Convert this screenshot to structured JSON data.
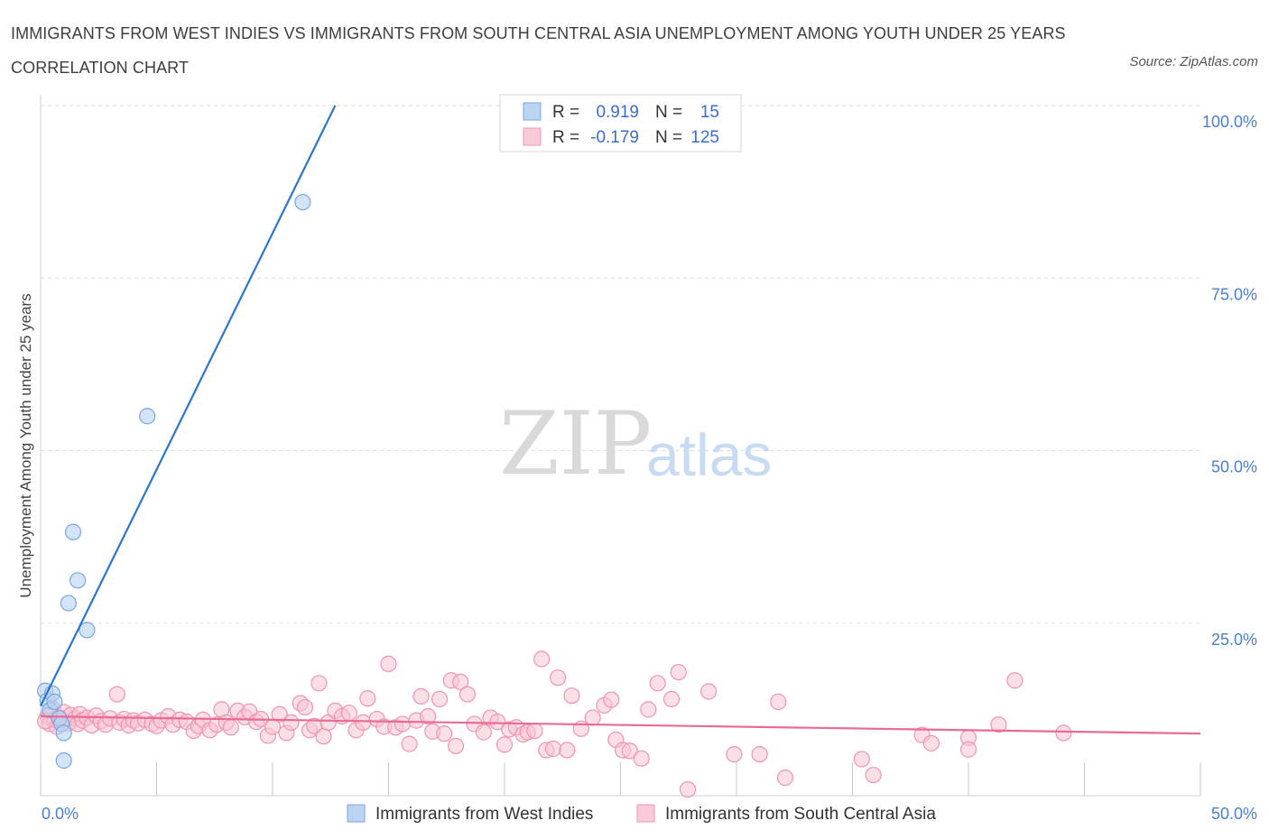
{
  "title": "IMMIGRANTS FROM WEST INDIES VS IMMIGRANTS FROM SOUTH CENTRAL ASIA UNEMPLOYMENT AMONG YOUTH UNDER 25 YEARS CORRELATION CHART",
  "source": "Source: ZipAtlas.com",
  "watermark": {
    "zip": "ZIP",
    "atlas": "atlas"
  },
  "stats": [
    {
      "r_label": "R =",
      "r_value": "0.919",
      "n_label": "N =",
      "n_value": "15",
      "color": "#a9c8f0"
    },
    {
      "r_label": "R =",
      "r_value": "-0.179",
      "n_label": "N =",
      "n_value": "125",
      "color": "#f5b8cb"
    }
  ],
  "colors": {
    "west_indies_fill": "#b8d2f3",
    "west_indies_stroke": "#7aa6dd",
    "west_indies_line": "#2f74cc",
    "sca_fill": "#f7c4d3",
    "sca_stroke": "#ef94b0",
    "sca_line": "#e96a94",
    "grid": "#dcdcdc",
    "axis_text": "#4a7fd0"
  },
  "chart_data": {
    "type": "scatter",
    "title": "IMMIGRANTS FROM WEST INDIES VS IMMIGRANTS FROM SOUTH CENTRAL ASIA UNEMPLOYMENT AMONG YOUTH UNDER 25 YEARS CORRELATION CHART",
    "xlabel": "",
    "ylabel": "Unemployment Among Youth under 25 years",
    "xlim": [
      0,
      50
    ],
    "ylim": [
      0,
      100
    ],
    "x_tick_labels": [
      "0.0%",
      "50.0%"
    ],
    "y_tick_labels": [
      "100.0%",
      "75.0%",
      "50.0%",
      "25.0%"
    ],
    "y_ticks": [
      100,
      75,
      50,
      25
    ],
    "grid": true,
    "legend_position": "bottom",
    "series": [
      {
        "name": "Immigrants from West Indies",
        "points": [
          [
            0.2,
            15.2
          ],
          [
            0.3,
            13.8
          ],
          [
            0.4,
            12.4
          ],
          [
            0.5,
            14.8
          ],
          [
            0.6,
            13.6
          ],
          [
            0.8,
            11.2
          ],
          [
            0.9,
            10.4
          ],
          [
            1.0,
            9.1
          ],
          [
            1.0,
            5.1
          ],
          [
            1.2,
            27.9
          ],
          [
            1.4,
            38.2
          ],
          [
            1.6,
            31.2
          ],
          [
            2.0,
            24.0
          ],
          [
            4.6,
            55.0
          ],
          [
            11.3,
            86.0
          ]
        ],
        "trend": [
          [
            0.0,
            13.0
          ],
          [
            12.7,
            100.0
          ]
        ]
      },
      {
        "name": "Immigrants from South Central Asia",
        "points": [
          [
            0.3,
            11.5
          ],
          [
            0.4,
            10.4
          ],
          [
            0.5,
            12.6
          ],
          [
            0.6,
            11.0
          ],
          [
            0.7,
            10.0
          ],
          [
            0.8,
            11.4
          ],
          [
            0.9,
            10.9
          ],
          [
            1.0,
            12.1
          ],
          [
            1.2,
            10.5
          ],
          [
            1.3,
            11.7
          ],
          [
            1.5,
            11.2
          ],
          [
            1.6,
            10.4
          ],
          [
            1.7,
            11.8
          ],
          [
            1.8,
            10.9
          ],
          [
            2.0,
            11.3
          ],
          [
            2.2,
            10.2
          ],
          [
            2.4,
            11.6
          ],
          [
            2.6,
            10.8
          ],
          [
            2.8,
            10.3
          ],
          [
            3.0,
            11.2
          ],
          [
            3.3,
            14.7
          ],
          [
            3.4,
            10.6
          ],
          [
            3.6,
            11.1
          ],
          [
            3.8,
            10.2
          ],
          [
            4.0,
            10.9
          ],
          [
            4.2,
            10.5
          ],
          [
            4.5,
            11.0
          ],
          [
            4.8,
            10.4
          ],
          [
            5.0,
            10.1
          ],
          [
            5.2,
            10.9
          ],
          [
            5.5,
            11.5
          ],
          [
            5.7,
            10.3
          ],
          [
            6.0,
            11.0
          ],
          [
            6.3,
            10.7
          ],
          [
            6.6,
            9.4
          ],
          [
            6.8,
            10.1
          ],
          [
            7.0,
            11.0
          ],
          [
            7.3,
            9.5
          ],
          [
            7.6,
            10.3
          ],
          [
            7.8,
            12.5
          ],
          [
            8.0,
            10.6
          ],
          [
            8.2,
            9.9
          ],
          [
            8.5,
            12.3
          ],
          [
            8.8,
            11.4
          ],
          [
            9.0,
            12.2
          ],
          [
            9.3,
            10.7
          ],
          [
            9.5,
            11.1
          ],
          [
            9.8,
            8.7
          ],
          [
            10.0,
            10.0
          ],
          [
            10.3,
            11.8
          ],
          [
            10.6,
            9.1
          ],
          [
            10.8,
            10.6
          ],
          [
            11.2,
            13.4
          ],
          [
            11.4,
            12.8
          ],
          [
            11.6,
            9.5
          ],
          [
            11.8,
            10.1
          ],
          [
            12.0,
            16.3
          ],
          [
            12.2,
            8.6
          ],
          [
            12.4,
            10.6
          ],
          [
            12.7,
            12.3
          ],
          [
            13.0,
            11.5
          ],
          [
            13.3,
            12.0
          ],
          [
            13.6,
            9.5
          ],
          [
            13.9,
            10.6
          ],
          [
            14.1,
            14.1
          ],
          [
            14.5,
            11.1
          ],
          [
            14.8,
            10.0
          ],
          [
            15.0,
            19.1
          ],
          [
            15.3,
            9.9
          ],
          [
            15.6,
            10.4
          ],
          [
            15.9,
            7.5
          ],
          [
            16.2,
            10.9
          ],
          [
            16.4,
            14.4
          ],
          [
            16.7,
            11.5
          ],
          [
            16.9,
            9.3
          ],
          [
            17.2,
            14.0
          ],
          [
            17.4,
            9.0
          ],
          [
            17.7,
            16.7
          ],
          [
            17.9,
            7.2
          ],
          [
            18.1,
            16.5
          ],
          [
            18.4,
            14.7
          ],
          [
            18.7,
            10.4
          ],
          [
            19.1,
            9.2
          ],
          [
            19.4,
            11.3
          ],
          [
            19.7,
            10.7
          ],
          [
            20.0,
            7.4
          ],
          [
            20.2,
            9.6
          ],
          [
            20.5,
            9.9
          ],
          [
            20.8,
            8.9
          ],
          [
            21.0,
            9.2
          ],
          [
            21.3,
            9.4
          ],
          [
            21.6,
            19.8
          ],
          [
            21.8,
            6.6
          ],
          [
            22.1,
            6.8
          ],
          [
            22.3,
            17.1
          ],
          [
            22.7,
            6.6
          ],
          [
            22.9,
            14.5
          ],
          [
            23.3,
            9.7
          ],
          [
            23.8,
            11.3
          ],
          [
            24.3,
            13.1
          ],
          [
            24.6,
            13.9
          ],
          [
            24.8,
            8.1
          ],
          [
            25.1,
            6.6
          ],
          [
            25.4,
            6.5
          ],
          [
            25.9,
            5.4
          ],
          [
            26.2,
            12.5
          ],
          [
            26.6,
            16.3
          ],
          [
            27.2,
            14.0
          ],
          [
            27.5,
            17.9
          ],
          [
            27.9,
            0.9
          ],
          [
            28.8,
            15.1
          ],
          [
            29.9,
            6.0
          ],
          [
            31.0,
            6.0
          ],
          [
            31.8,
            13.6
          ],
          [
            32.1,
            2.6
          ],
          [
            35.4,
            5.3
          ],
          [
            35.9,
            3.0
          ],
          [
            38.0,
            8.8
          ],
          [
            38.4,
            7.6
          ],
          [
            40.0,
            8.4
          ],
          [
            40.0,
            6.7
          ],
          [
            41.3,
            10.3
          ],
          [
            42.0,
            16.7
          ],
          [
            44.1,
            9.1
          ],
          [
            0.2,
            10.8
          ]
        ],
        "trend": [
          [
            0.0,
            11.5
          ],
          [
            50.0,
            9.0
          ]
        ]
      }
    ]
  }
}
